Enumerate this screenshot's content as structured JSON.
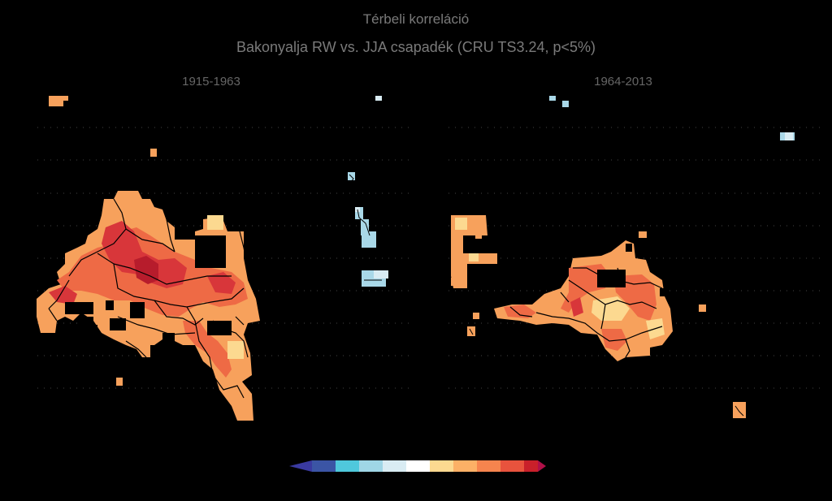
{
  "title": "Térbeli korreláció",
  "subtitle": "Bakonyalja RW vs. JJA csapadék (CRU TS3.24, p<5%)",
  "panels": [
    {
      "label": "1915-1963"
    },
    {
      "label": "1964-2013"
    }
  ],
  "colorbar": {
    "colors": [
      "#3b55a5",
      "#4fc8dc",
      "#9fd6e6",
      "#d9ecf3",
      "#ffffff",
      "#fcd990",
      "#fcb066",
      "#f6844e",
      "#e8533d",
      "#c9202a"
    ],
    "arrow_left": "#3a3aa0",
    "arrow_right": "#b01048"
  },
  "colors": {
    "background": "#000000",
    "title_text": "#7a7a7a",
    "land_border": "#000000"
  }
}
